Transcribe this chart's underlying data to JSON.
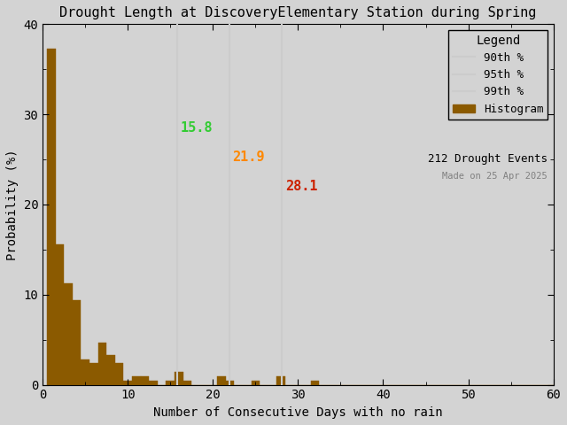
{
  "title": "Drought Length at DiscoveryElementary Station during Spring",
  "xlabel": "Number of Consecutive Days with no rain",
  "ylabel": "Probability (%)",
  "xlim": [
    0,
    60
  ],
  "ylim": [
    0,
    40
  ],
  "xticks": [
    0,
    10,
    20,
    30,
    40,
    50,
    60
  ],
  "yticks": [
    0,
    10,
    20,
    30,
    40
  ],
  "bar_color": "#8B5A00",
  "bar_edgecolor": "#8B5A00",
  "background_color": "#d3d3d3",
  "percentile_90": 15.8,
  "percentile_95": 21.9,
  "percentile_99": 28.1,
  "percentile_90_color": "#33cc33",
  "percentile_95_color": "#ff8800",
  "percentile_99_color": "#cc2200",
  "percentile_line_color": "#cccccc",
  "n_events": 212,
  "made_on": "Made on 25 Apr 2025",
  "legend_title": "Legend",
  "hist_values": [
    37.3,
    15.6,
    11.3,
    9.4,
    2.8,
    2.4,
    4.7,
    3.3,
    2.4,
    0.5,
    0.9,
    0.9,
    0.5,
    0.0,
    0.5,
    1.4,
    0.5,
    0.0,
    0.0,
    0.0,
    0.9,
    0.5,
    0.0,
    0.0,
    0.5,
    0.0,
    0.0,
    0.9,
    0.0,
    0.0,
    0.0,
    0.5,
    0.0,
    0.0,
    0.0,
    0.0,
    0.0,
    0.0,
    0.0,
    0.0,
    0.0,
    0.0,
    0.0,
    0.0,
    0.0,
    0.0,
    0.0,
    0.0,
    0.0,
    0.0,
    0.0,
    0.0,
    0.0,
    0.0,
    0.0,
    0.0,
    0.0,
    0.0,
    0.0,
    0.0
  ],
  "bin_width": 1,
  "figsize": [
    6.4,
    4.8
  ],
  "dpi": 100,
  "title_fontsize": 11,
  "axis_label_fontsize": 10,
  "tick_fontsize": 10,
  "legend_fontsize": 9,
  "annot_fontsize": 11
}
